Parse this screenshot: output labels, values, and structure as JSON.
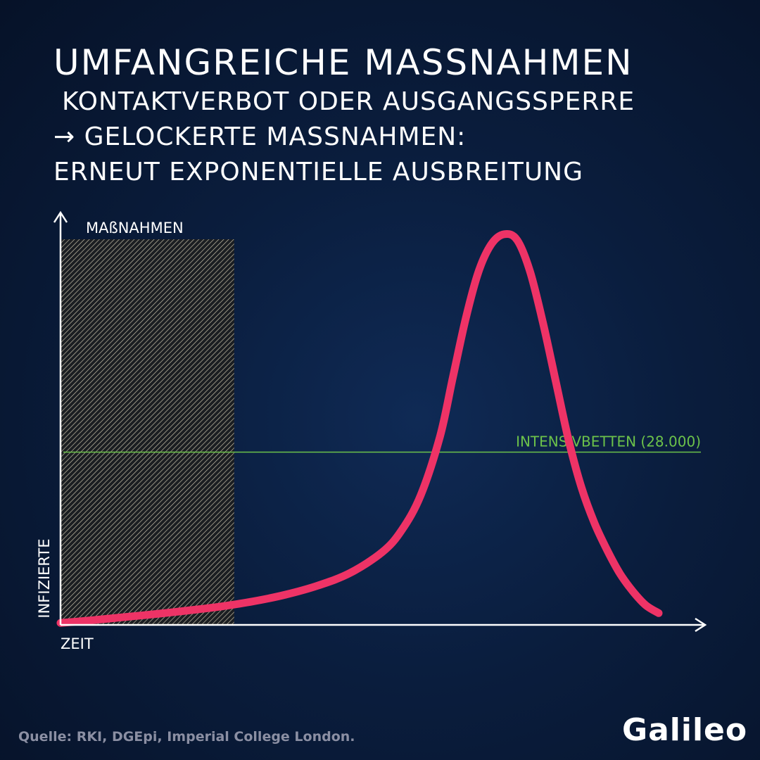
{
  "header": {
    "title": "UMFANGREICHE MAßNAHMEN",
    "subtitle_1": "KONTAKTVERBOT ODER AUSGANGSSPERRE",
    "subtitle_2": "→ GELOCKERTE MAßNAHMEN:",
    "subtitle_3": "ERNEUT EXPONENTIELLE AUSBREITUNG"
  },
  "colors": {
    "curve": "#ee3366",
    "threshold": "#6cc24a",
    "axis": "#ffffff",
    "hatch": "#cfc8b0"
  },
  "chart_data": {
    "type": "line",
    "title": "",
    "xlabel": "ZEIT",
    "ylabel": "INFIZIERTE",
    "xlim": [
      0,
      100
    ],
    "ylim": [
      0,
      100
    ],
    "grid": false,
    "shaded_region": {
      "label": "MAßNAHMEN",
      "x_range": [
        0,
        27
      ]
    },
    "threshold": {
      "label": "INTENSIVBETTEN (28.000)",
      "y": 44
    },
    "series": [
      {
        "x": [
          0,
          5,
          10,
          15,
          20,
          25,
          30,
          35,
          40,
          45,
          50,
          53,
          56,
          59,
          61,
          63,
          65,
          67,
          69,
          71,
          73,
          75,
          77,
          79,
          81,
          83,
          85,
          87,
          89,
          91,
          93
        ],
        "y": [
          0.5,
          1.2,
          2.0,
          2.8,
          3.7,
          4.7,
          6.0,
          7.7,
          10.0,
          13.2,
          18.5,
          24,
          33,
          48,
          63,
          78,
          90,
          97,
          99.5,
          98,
          90,
          77,
          62,
          47,
          35,
          26,
          19,
          13,
          8.5,
          5,
          3
        ]
      }
    ]
  },
  "footer": {
    "source": "Quelle: RKI, DGEpi, Imperial College London.",
    "logo": "Galileo"
  }
}
